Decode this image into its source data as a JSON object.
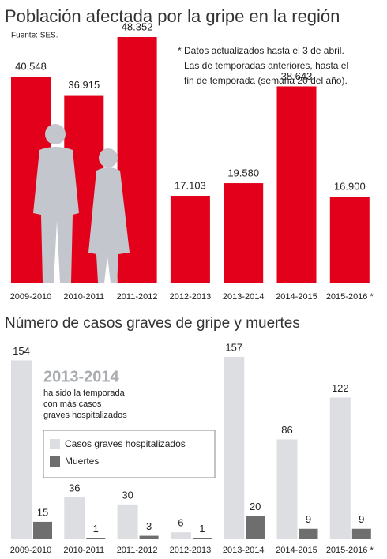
{
  "chart_data": [
    {
      "type": "bar",
      "title": "Población afectada por la gripe en la región",
      "subtitle": "Fuente: SES.",
      "note": [
        "* Datos actualizados hasta el 3 de abril.",
        "Las de temporadas anteriores, hasta el",
        "fin de temporada (semana 20 del año)."
      ],
      "categories": [
        "2009-2010",
        "2010-2011",
        "2011-2012",
        "2012-2013",
        "2013-2014",
        "2014-2015",
        "2015-2016 *"
      ],
      "values": [
        40548,
        36915,
        48352,
        17103,
        19580,
        38643,
        16900
      ],
      "value_labels": [
        "40.548",
        "36.915",
        "48.352",
        "17.103",
        "19.580",
        "38.643",
        "16.900"
      ],
      "color": "#e2001a"
    },
    {
      "type": "bar",
      "title": "Número de casos graves de gripe y muertes",
      "highlight": "2013-2014",
      "annotation": [
        "ha sido la temporada",
        "con más casos",
        "graves hospitalizados"
      ],
      "categories": [
        "2009-2010",
        "2010-2011",
        "2011-2012",
        "2012-2013",
        "2013-2014",
        "2014-2015",
        "2015-2016 *"
      ],
      "series": [
        {
          "name": "Casos graves hospitalizados",
          "color": "#dcdee1",
          "values": [
            154,
            36,
            30,
            6,
            157,
            86,
            122
          ]
        },
        {
          "name": "Muertes",
          "color": "#6e6e6e",
          "values": [
            15,
            1,
            3,
            1,
            20,
            9,
            9
          ]
        }
      ]
    }
  ]
}
